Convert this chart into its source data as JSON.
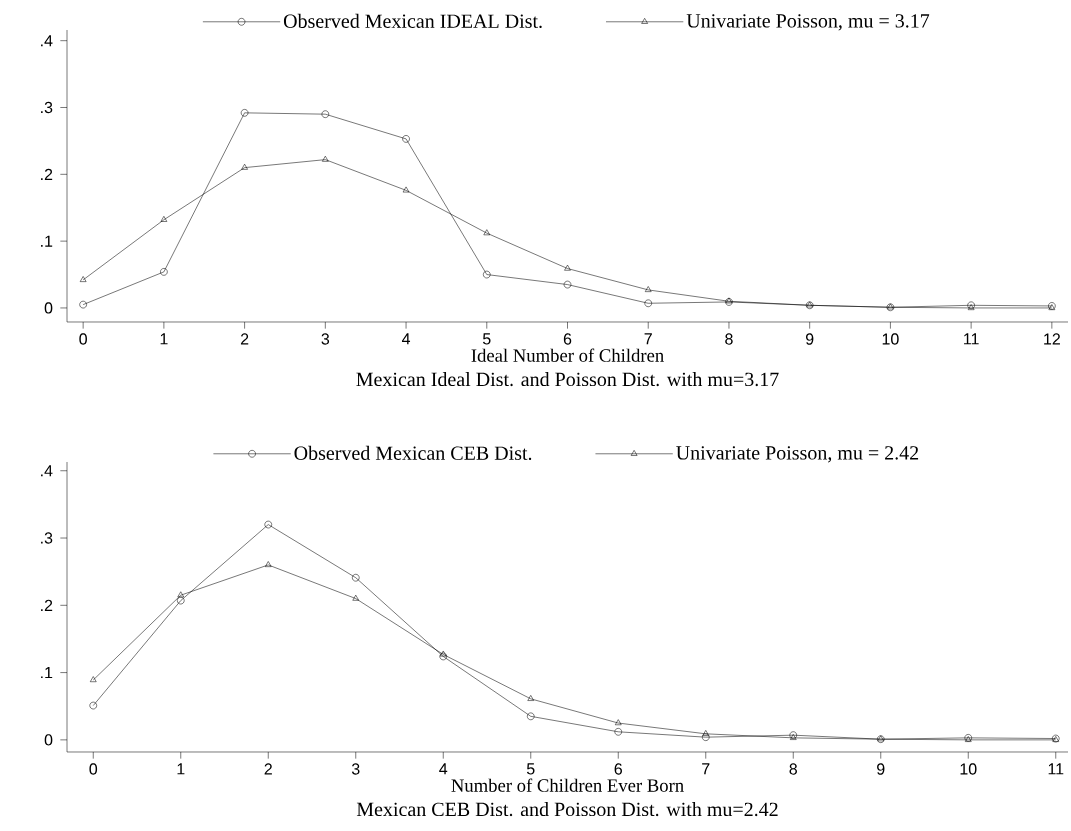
{
  "chart_data": [
    {
      "type": "line",
      "title": "Mexican Ideal Dist. and Poisson Dist. with mu=3.17",
      "xlabel": "Ideal Number of Children",
      "x": [
        0,
        1,
        2,
        3,
        4,
        5,
        6,
        7,
        8,
        9,
        10,
        11,
        12
      ],
      "series": [
        {
          "name": "Observed Mexican IDEAL Dist.",
          "color": "#000000",
          "marker": "circle",
          "values": [
            0.005,
            0.054,
            0.292,
            0.29,
            0.253,
            0.05,
            0.035,
            0.007,
            0.009,
            0.004,
            0.001,
            0.004,
            0.003
          ]
        },
        {
          "name": "Univariate Poisson, mu = 3.17",
          "color": "#000000",
          "marker": "triangle",
          "values": [
            0.042,
            0.132,
            0.21,
            0.222,
            0.176,
            0.112,
            0.059,
            0.027,
            0.01,
            0.004,
            0.001,
            0.0,
            0.0
          ]
        }
      ],
      "xlim": [
        -0.2,
        12.2
      ],
      "ylim": [
        -0.021,
        0.416
      ],
      "xticks": [
        0,
        1,
        2,
        3,
        4,
        5,
        6,
        7,
        8,
        9,
        10,
        11,
        12
      ],
      "yticks": [
        0,
        {
          "value": 0.1,
          "label": ".1"
        },
        {
          "value": 0.2,
          "label": ".2"
        },
        {
          "value": 0.3,
          "label": ".3"
        },
        {
          "value": 0.4,
          "label": ".4"
        }
      ],
      "legend": "top",
      "line_style": "solid"
    },
    {
      "type": "line",
      "title": "Mexican CEB Dist. and Poisson Dist. with mu=2.42",
      "xlabel": "Number of Children Ever Born",
      "x": [
        0,
        1,
        2,
        3,
        4,
        5,
        6,
        7,
        8,
        9,
        10,
        11
      ],
      "series": [
        {
          "name": "Observed Mexican CEB Dist.",
          "color": "#000000",
          "marker": "circle",
          "values": [
            0.051,
            0.207,
            0.32,
            0.241,
            0.124,
            0.035,
            0.012,
            0.004,
            0.007,
            0.001,
            0.003,
            0.002
          ]
        },
        {
          "name": "Univariate Poisson, mu = 2.42",
          "color": "#000000",
          "marker": "triangle",
          "values": [
            0.089,
            0.215,
            0.26,
            0.21,
            0.127,
            0.061,
            0.025,
            0.009,
            0.003,
            0.001,
            0.0,
            0.0
          ]
        }
      ],
      "xlim": [
        -0.3,
        11.14
      ],
      "ylim": [
        -0.018,
        0.413
      ],
      "xticks": [
        0,
        1,
        2,
        3,
        4,
        5,
        6,
        7,
        8,
        9,
        10,
        11
      ],
      "yticks": [
        0,
        {
          "value": 0.1,
          "label": ".1"
        },
        {
          "value": 0.2,
          "label": ".2"
        },
        {
          "value": 0.3,
          "label": ".3"
        },
        {
          "value": 0.4,
          "label": ".4"
        }
      ],
      "legend": "top",
      "line_style": "solid"
    }
  ]
}
